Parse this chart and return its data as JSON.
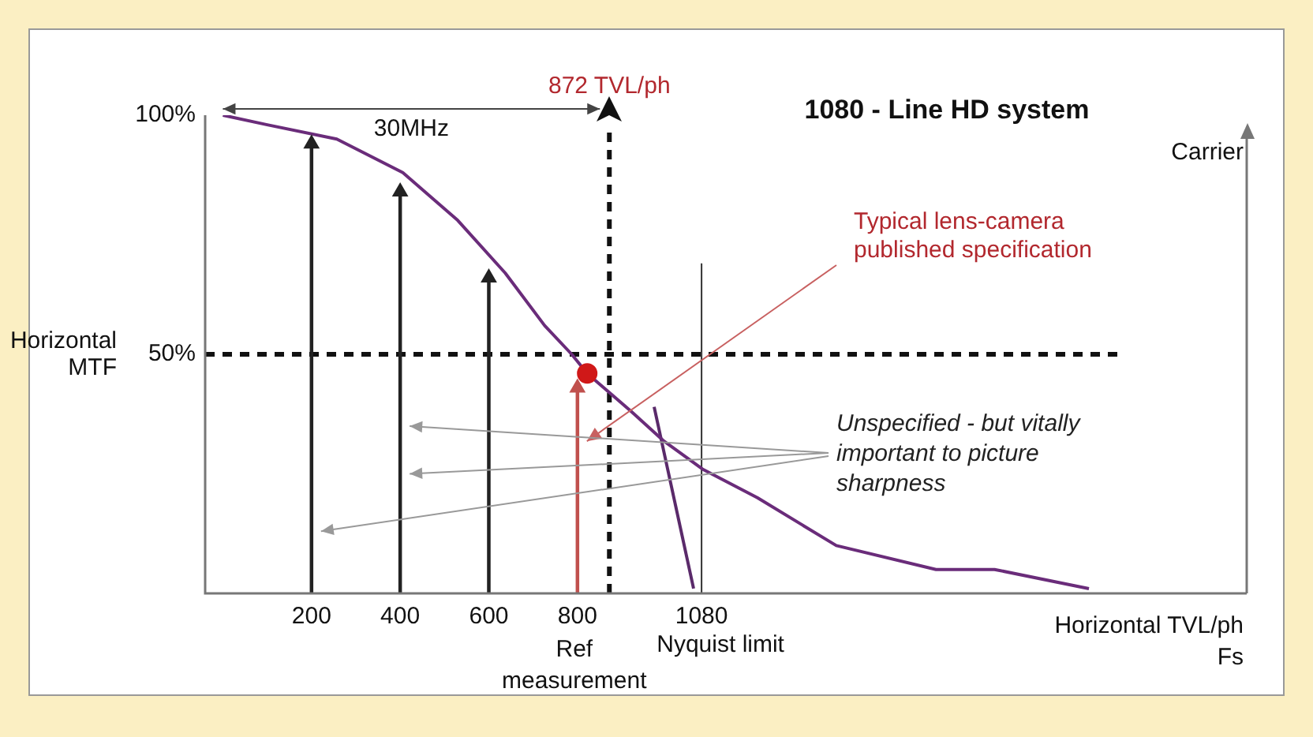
{
  "chart_data": {
    "type": "line",
    "title": "1080 - Line HD system",
    "xlabel": "Horizontal TVL/ph\nFs",
    "ylabel": "Horizontal\nMTF",
    "xlim": [
      -40,
      2310
    ],
    "xticks": [
      200,
      400,
      600,
      800,
      1080
    ],
    "ylim": [
      0,
      100
    ],
    "yticks": [
      {
        "value": 50,
        "label": "50%"
      },
      {
        "value": 100,
        "label": "100%"
      }
    ],
    "grid": false,
    "legend": false,
    "marker": "none",
    "series": [
      {
        "color": "#6a2c7a",
        "x": [
          0,
          100,
          257,
          406,
          530,
          637,
          726,
          787,
          822,
          922,
          993,
          1082,
          1206,
          1384,
          1609,
          1741,
          1954
        ],
        "values": [
          100,
          98,
          95,
          88,
          78,
          67,
          56,
          50,
          46,
          38,
          32,
          26,
          20,
          10,
          5,
          5,
          1
        ]
      },
      {
        "color": "#5a2a6a",
        "x": [
          973,
          1062
        ],
        "values": [
          39,
          1
        ]
      },
      {
        "type": "lollipop",
        "marker": "triangle",
        "colors": [
          "#222222",
          "#222222",
          "#222222",
          "#c0504d"
        ],
        "x": [
          200,
          400,
          600,
          800
        ],
        "values": [
          94,
          84,
          66,
          43
        ]
      },
      {
        "type": "scatter",
        "color": "#d01818",
        "marker": "circle",
        "x": [
          822
        ],
        "values": [
          46
        ]
      }
    ],
    "ref_lines": [
      {
        "axis": "y",
        "value": 50,
        "line_style": "dashed",
        "color": "#111111"
      },
      {
        "axis": "x",
        "value": 872,
        "label": "872 TVL/ph",
        "line_style": "dashed",
        "color": "#111111"
      },
      {
        "axis": "x",
        "value": 1080,
        "label": "Nyquist limit",
        "line_style": "solid",
        "color": "#333333"
      }
    ],
    "annotations": [
      "30MHz",
      "Carrier",
      "Typical lens-camera\npublished specification",
      "Unspecified - but vitally\nimportant to picture\nsharpness",
      "Ref\nmeasurement"
    ]
  }
}
